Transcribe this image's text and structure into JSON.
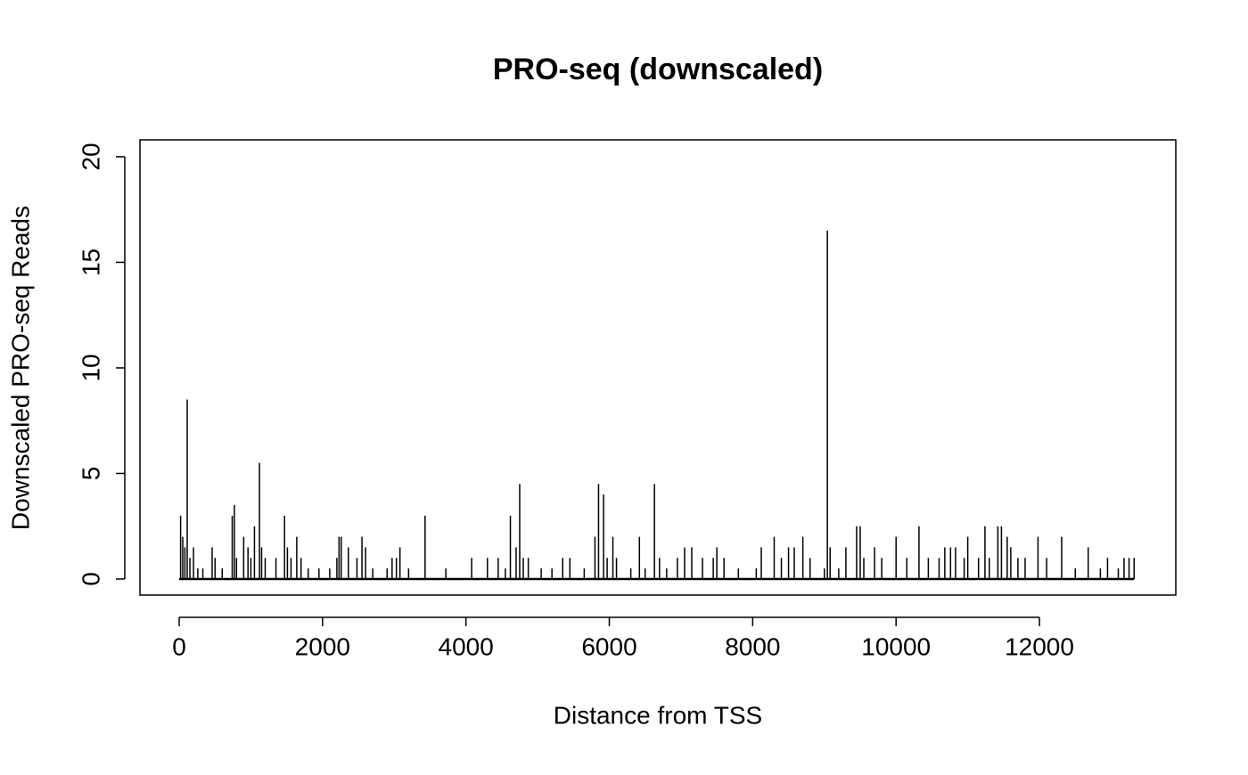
{
  "chart_data": {
    "type": "spike",
    "title": "PRO-seq (downscaled)",
    "x_label": "Distance from TSS",
    "y_label": "Downscaled PRO-seq Reads",
    "color": "#000000",
    "x": [
      20,
      50,
      80,
      112,
      150,
      200,
      260,
      330,
      460,
      500,
      600,
      740,
      770,
      800,
      900,
      960,
      1000,
      1050,
      1120,
      1150,
      1200,
      1350,
      1470,
      1510,
      1560,
      1640,
      1700,
      1800,
      1950,
      2100,
      2200,
      2230,
      2260,
      2360,
      2480,
      2550,
      2600,
      2700,
      2900,
      2970,
      3030,
      3080,
      3200,
      3430,
      3720,
      4080,
      4300,
      4450,
      4550,
      4620,
      4700,
      4750,
      4800,
      4870,
      5050,
      5200,
      5350,
      5450,
      5650,
      5800,
      5850,
      5920,
      5970,
      6050,
      6100,
      6300,
      6420,
      6500,
      6630,
      6700,
      6800,
      6950,
      7050,
      7150,
      7300,
      7450,
      7500,
      7600,
      7800,
      8050,
      8120,
      8300,
      8400,
      8500,
      8580,
      8700,
      8800,
      9000,
      9042,
      9080,
      9200,
      9300,
      9450,
      9500,
      9550,
      9700,
      9800,
      10000,
      10150,
      10320,
      10450,
      10600,
      10680,
      10760,
      10830,
      10950,
      11000,
      11150,
      11240,
      11300,
      11420,
      11470,
      11550,
      11600,
      11700,
      11800,
      11980,
      12100,
      12310,
      12500,
      12680,
      12850,
      12950,
      13100,
      13180,
      13250,
      13320
    ],
    "values": [
      3,
      2,
      1.5,
      8.5,
      1,
      1.5,
      0.5,
      0.5,
      1.5,
      1,
      0.5,
      3,
      3.5,
      1,
      2,
      1.5,
      1,
      2.5,
      5.5,
      1.5,
      1,
      1,
      3,
      1.5,
      1,
      2,
      1,
      0.5,
      0.5,
      0.5,
      1,
      2,
      2,
      1.5,
      1,
      2,
      1.5,
      0.5,
      0.5,
      1,
      1,
      1.5,
      0.5,
      3,
      0.5,
      1,
      1,
      1,
      0.5,
      3,
      1.5,
      4.5,
      1,
      1,
      0.5,
      0.5,
      1,
      1,
      0.5,
      2,
      4.5,
      4,
      1,
      2,
      1,
      0.5,
      2,
      0.5,
      4.5,
      1,
      0.5,
      1,
      1.5,
      1.5,
      1,
      1,
      1.5,
      1,
      0.5,
      0.5,
      1.5,
      2,
      1,
      1.5,
      1.5,
      2,
      1,
      0.5,
      16.5,
      1.5,
      0.5,
      1.5,
      2.5,
      2.5,
      1,
      1.5,
      1,
      2,
      1,
      2.5,
      1,
      1,
      1.5,
      1.5,
      1.5,
      1,
      2,
      1,
      2.5,
      1,
      2.5,
      2.5,
      2,
      1.5,
      1,
      1,
      2,
      1,
      2,
      0.5,
      1.5,
      0.5,
      1,
      0.5,
      1,
      1,
      1
    ],
    "xlim": [
      -547,
      13902
    ],
    "ylim": [
      -0.76,
      20.8
    ],
    "xticks": [
      0,
      2000,
      4000,
      6000,
      8000,
      10000,
      12000
    ],
    "yticks": [
      0,
      5,
      10,
      15,
      20
    ]
  }
}
